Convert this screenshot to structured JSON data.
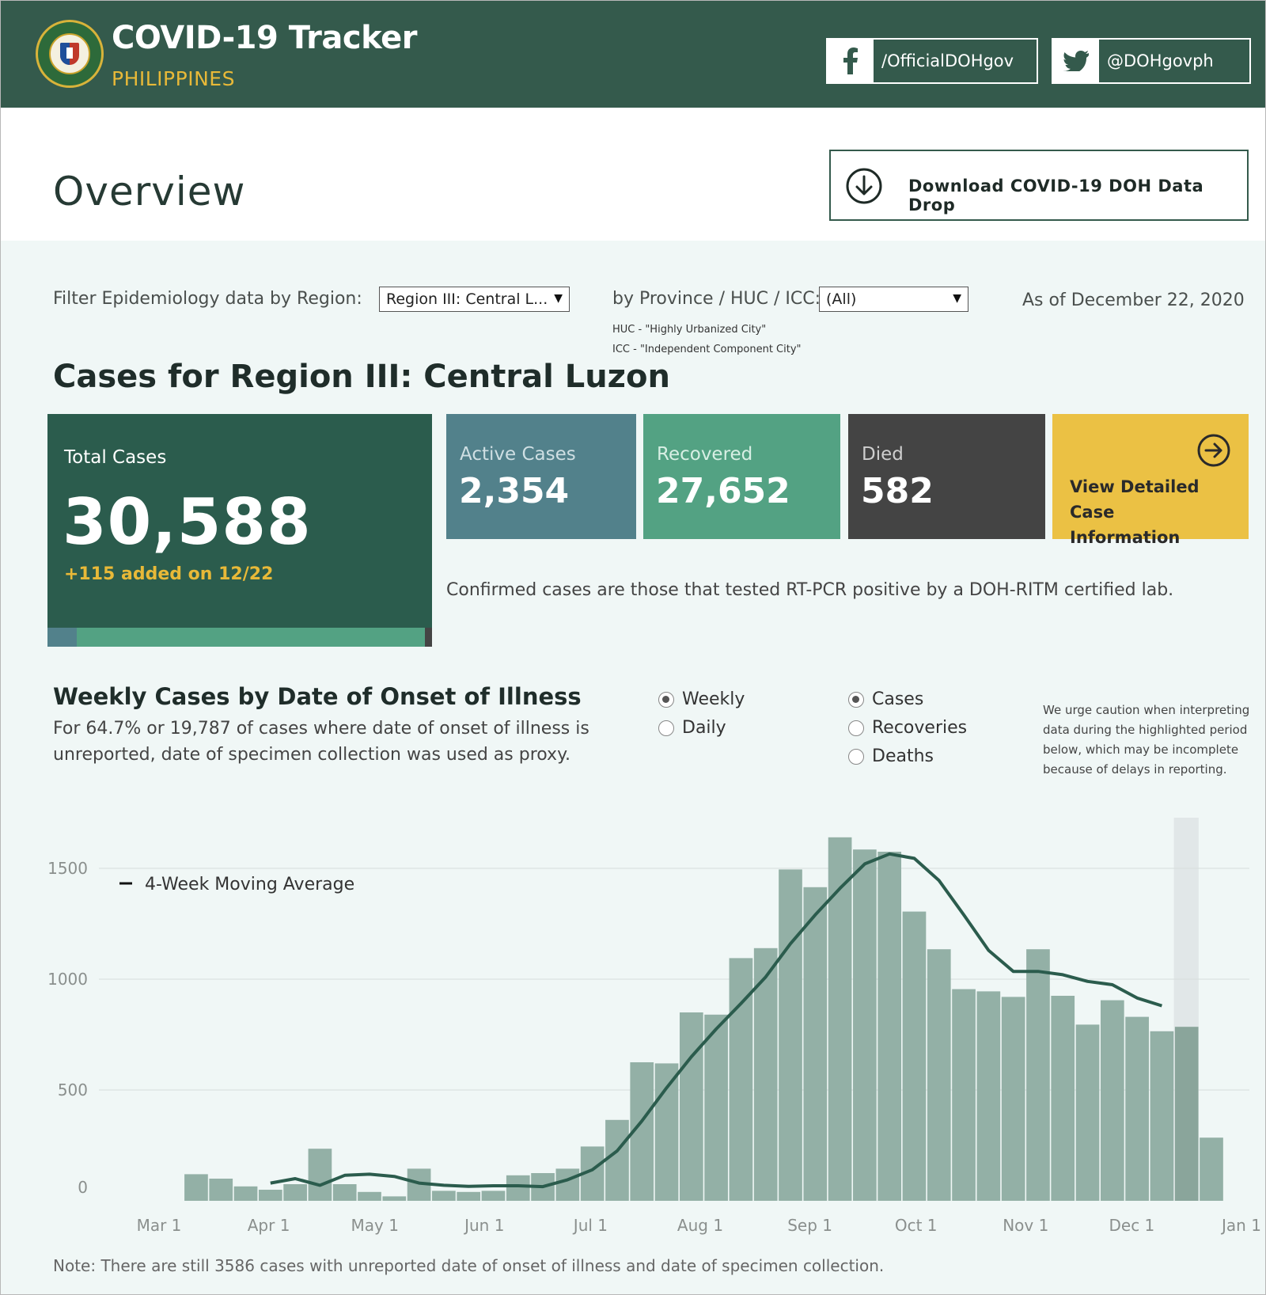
{
  "header": {
    "app_title": "COVID-19 Tracker",
    "app_subtitle": "PHILIPPINES",
    "facebook": "/OfficialDOHgov",
    "twitter": "@DOHgovph"
  },
  "overview": {
    "title": "Overview",
    "download_label": "Download COVID-19 DOH Data Drop"
  },
  "filters": {
    "region_label": "Filter Epidemiology data by Region:",
    "region_value": "Region III: Central L...",
    "province_label": "by Province / HUC / ICC:",
    "province_value": "(All)",
    "huc_note": "HUC - \"Highly Urbanized City\"",
    "icc_note": "ICC - \"Independent Component City\"",
    "as_of": "As of December 22, 2020"
  },
  "cases": {
    "title": "Cases for Region III: Central Luzon",
    "total_label": "Total Cases",
    "total_value": "30,588",
    "added": "+115 added on 12/22",
    "active_label": "Active Cases",
    "active_value": "2,354",
    "recovered_label": "Recovered",
    "recovered_value": "27,652",
    "died_label": "Died",
    "died_value": "582",
    "view_label": "View Detailed Case Information",
    "confirmed_note": "Confirmed cases are those that tested RT-PCR positive by a DOH-RITM certified lab.",
    "colors": {
      "total": "#2b5c4d",
      "active": "#52818b",
      "recovered": "#53a283",
      "died": "#444444",
      "view": "#ebc144"
    }
  },
  "weekly": {
    "title": "Weekly Cases by Date of Onset of Illness",
    "subtitle": "For 64.7% or 19,787 of cases where date of onset of illness is unreported, date of specimen collection was used as proxy.",
    "interval_options": [
      "Weekly",
      "Daily"
    ],
    "interval_selected": "Weekly",
    "metric_options": [
      "Cases",
      "Recoveries",
      "Deaths"
    ],
    "metric_selected": "Cases",
    "caution": "We urge caution when interpreting data during the highlighted period below, which may be incomplete because of delays in reporting.",
    "footnote": "Note: There are still 3586 cases with unreported date of onset of illness and date of specimen collection."
  },
  "chart_data": {
    "type": "bar",
    "legend": "4-Week Moving Average",
    "legend_position": "top-left",
    "yticks": [
      0,
      500,
      1000,
      1500
    ],
    "ylim": [
      0,
      1650
    ],
    "xticks": [
      "Mar 1",
      "Apr 1",
      "May 1",
      "Jun 1",
      "Jul 1",
      "Aug 1",
      "Sep 1",
      "Oct 1",
      "Nov 1",
      "Dec 1",
      "Jan 1"
    ],
    "x_start": "2020-03-01",
    "x_end": "2021-01-01",
    "week_starts": [
      "2020-03-08",
      "2020-03-15",
      "2020-03-22",
      "2020-03-29",
      "2020-04-05",
      "2020-04-12",
      "2020-04-19",
      "2020-04-26",
      "2020-05-03",
      "2020-05-10",
      "2020-05-17",
      "2020-05-24",
      "2020-05-31",
      "2020-06-07",
      "2020-06-14",
      "2020-06-21",
      "2020-06-28",
      "2020-07-05",
      "2020-07-12",
      "2020-07-19",
      "2020-07-26",
      "2020-08-02",
      "2020-08-09",
      "2020-08-16",
      "2020-08-23",
      "2020-08-30",
      "2020-09-06",
      "2020-09-13",
      "2020-09-20",
      "2020-09-27",
      "2020-10-04",
      "2020-10-11",
      "2020-10-18",
      "2020-10-25",
      "2020-11-01",
      "2020-11-08",
      "2020-11-15",
      "2020-11-22",
      "2020-11-29",
      "2020-12-06",
      "2020-12-13",
      "2020-12-20"
    ],
    "values": [
      120,
      100,
      65,
      50,
      75,
      235,
      75,
      40,
      20,
      145,
      45,
      40,
      45,
      115,
      125,
      145,
      245,
      365,
      625,
      620,
      850,
      840,
      1095,
      1140,
      1495,
      1415,
      1640,
      1585,
      1575,
      1305,
      1135,
      955,
      945,
      920,
      1135,
      925,
      795,
      905,
      830,
      765,
      785,
      285
    ],
    "moving_average": [
      null,
      null,
      null,
      80,
      100,
      70,
      115,
      120,
      110,
      80,
      70,
      65,
      68,
      68,
      64,
      95,
      140,
      225,
      360,
      510,
      650,
      775,
      890,
      1010,
      1160,
      1290,
      1410,
      1520,
      1565,
      1545,
      1445,
      1290,
      1130,
      1035,
      1035,
      1020,
      990,
      975,
      915,
      880,
      null,
      null
    ],
    "highlight_weeks": [
      "2020-12-13"
    ]
  }
}
